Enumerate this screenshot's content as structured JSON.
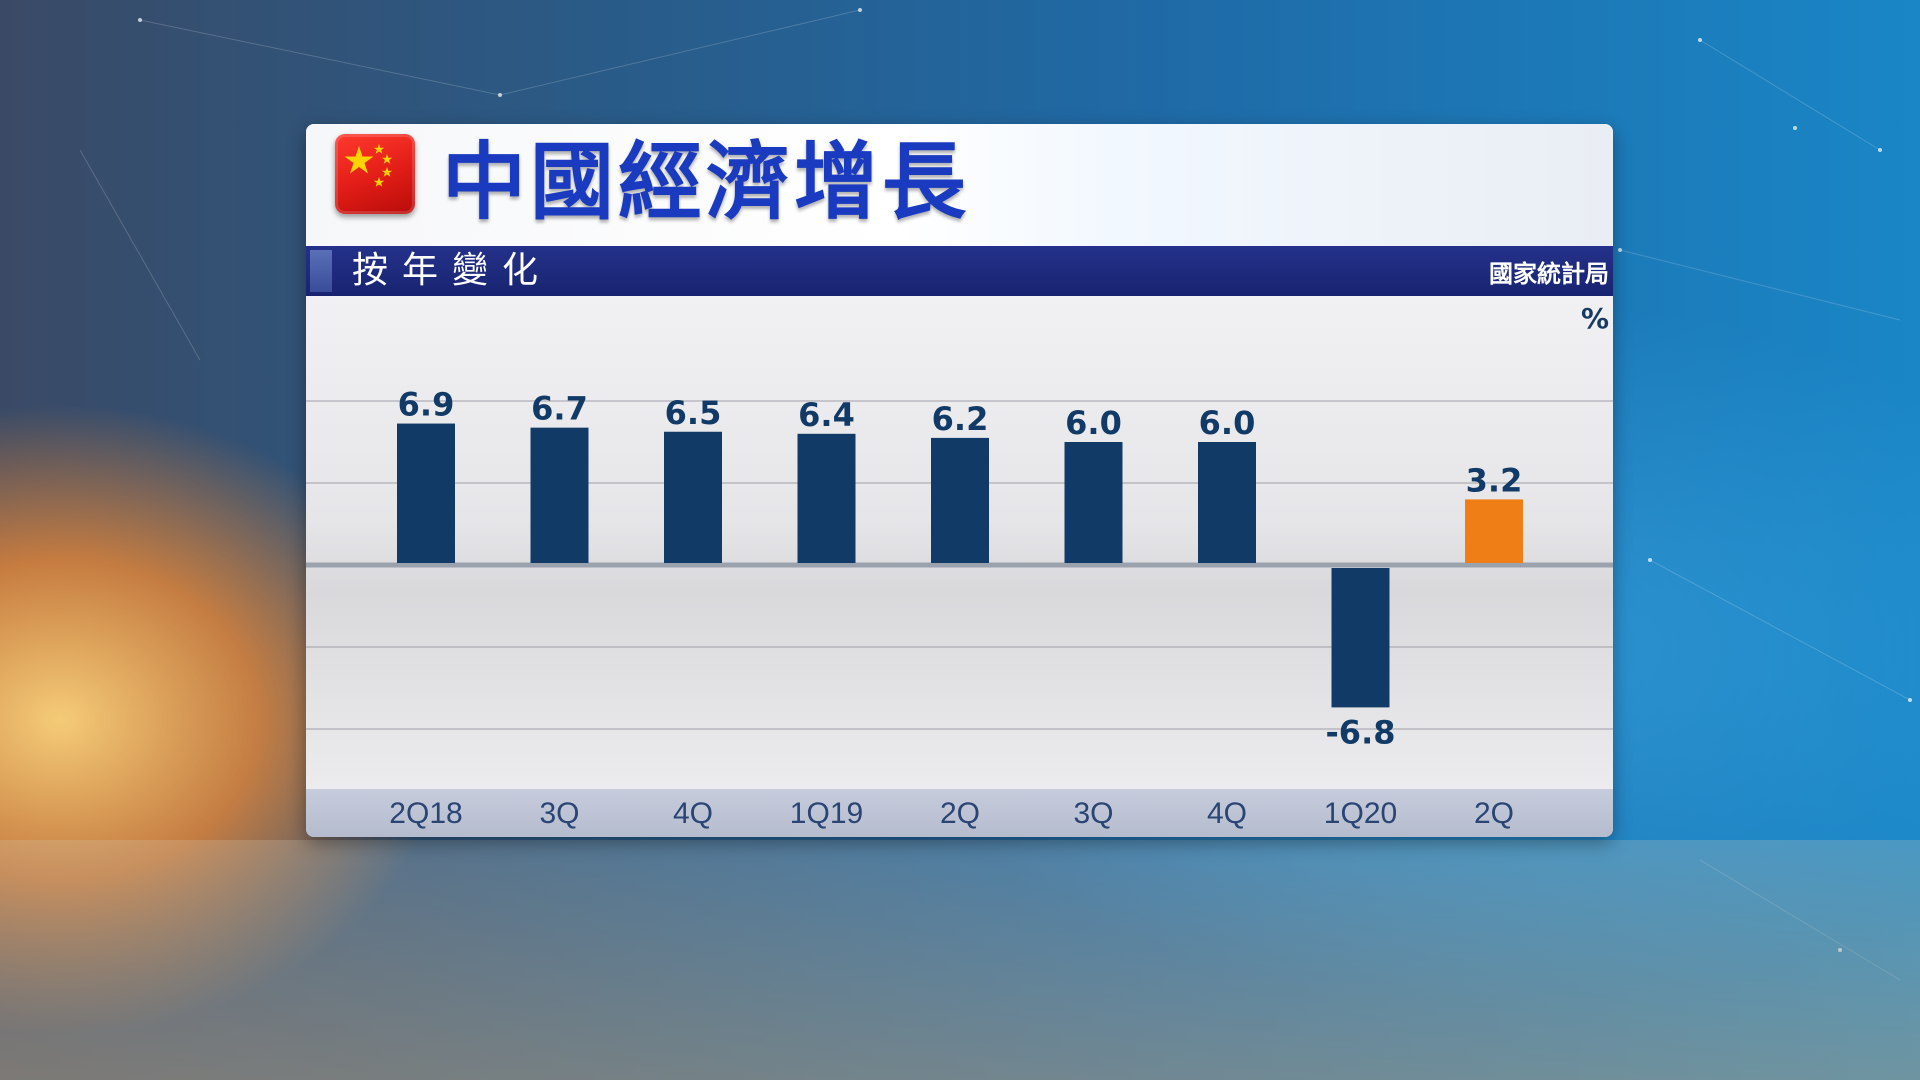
{
  "title": "中國經濟增長",
  "subtitle": "按年變化",
  "source": "國家統計局",
  "unit": "%",
  "flag_icon": "china-flag-icon",
  "colors": {
    "bar": "#123a66",
    "highlight": "#f07e16",
    "label": "#123a66",
    "title": "#1a3bbf"
  },
  "chart_data": {
    "type": "bar",
    "categories": [
      "2Q18",
      "3Q",
      "4Q",
      "1Q19",
      "2Q",
      "3Q",
      "4Q",
      "1Q20",
      "2Q"
    ],
    "values": [
      6.9,
      6.7,
      6.5,
      6.4,
      6.2,
      6.0,
      6.0,
      -6.8,
      3.2
    ],
    "value_labels": [
      "6.9",
      "6.7",
      "6.5",
      "6.4",
      "6.2",
      "6.0",
      "6.0",
      "-6.8",
      "3.2"
    ],
    "highlight_index": 8,
    "title": "中國經濟增長",
    "subtitle": "按年變化",
    "ylabel": "%",
    "grid": true,
    "ylim": [
      -8,
      8
    ]
  }
}
